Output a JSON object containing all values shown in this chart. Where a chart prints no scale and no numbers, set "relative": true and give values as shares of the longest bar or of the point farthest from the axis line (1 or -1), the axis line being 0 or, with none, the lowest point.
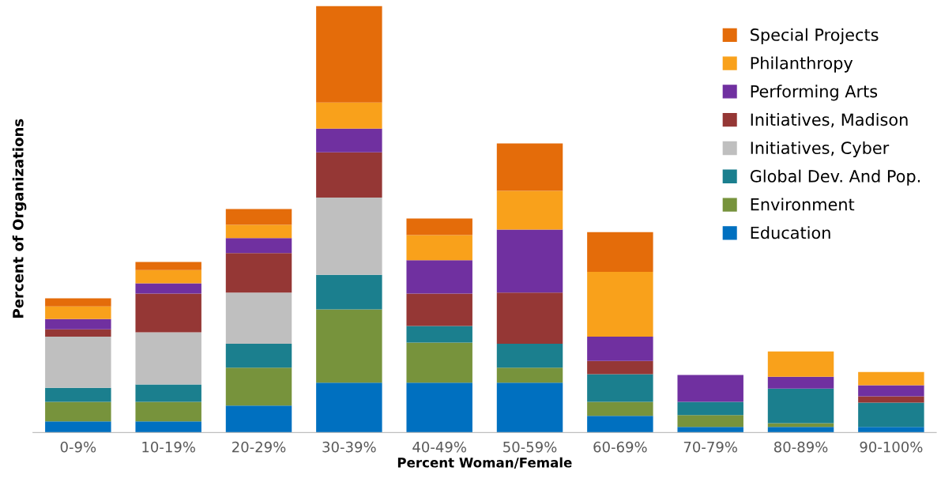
{
  "chart_data": {
    "type": "bar",
    "stacked": true,
    "relative": true,
    "xlabel": "Percent Woman/Female",
    "ylabel": "Percent of Organizations",
    "legend": "top right",
    "grid": false,
    "categories": [
      "0-9%",
      "10-19%",
      "20-29%",
      "30-39%",
      "40-49%",
      "50-59%",
      "60-69%",
      "70-79%",
      "80-89%",
      "90-100%"
    ],
    "series": [
      {
        "name": "Education",
        "color": "#0070c0",
        "values": [
          0.026,
          0.026,
          0.063,
          0.117,
          0.117,
          0.117,
          0.039,
          0.013,
          0.013,
          0.013
        ]
      },
      {
        "name": "Environment",
        "color": "#77933c",
        "values": [
          0.046,
          0.046,
          0.089,
          0.172,
          0.094,
          0.035,
          0.033,
          0.028,
          0.009,
          0
        ]
      },
      {
        "name": "Global Dev. And Pop.",
        "color": "#1b7f8e",
        "values": [
          0.033,
          0.041,
          0.056,
          0.081,
          0.039,
          0.056,
          0.065,
          0.031,
          0.081,
          0.057
        ]
      },
      {
        "name": "Initiatives, Cyber",
        "color": "#bfbfbf",
        "values": [
          0.12,
          0.122,
          0.12,
          0.181,
          0,
          0,
          0,
          0,
          0,
          0
        ]
      },
      {
        "name": "Initiatives, Madison",
        "color": "#953735",
        "values": [
          0.017,
          0.091,
          0.093,
          0.106,
          0.076,
          0.12,
          0.031,
          0,
          0,
          0.015
        ]
      },
      {
        "name": "Performing Arts",
        "color": "#7030a0",
        "values": [
          0.024,
          0.024,
          0.035,
          0.056,
          0.078,
          0.148,
          0.057,
          0.063,
          0.028,
          0.026
        ]
      },
      {
        "name": "Philanthropy",
        "color": "#f9a11b",
        "values": [
          0.03,
          0.031,
          0.031,
          0.061,
          0.059,
          0.091,
          0.152,
          0,
          0.059,
          0.031
        ]
      },
      {
        "name": "Special Projects",
        "color": "#e46c0a",
        "values": [
          0.019,
          0.019,
          0.037,
          0.226,
          0.039,
          0.111,
          0.093,
          0,
          0,
          0
        ]
      }
    ]
  }
}
